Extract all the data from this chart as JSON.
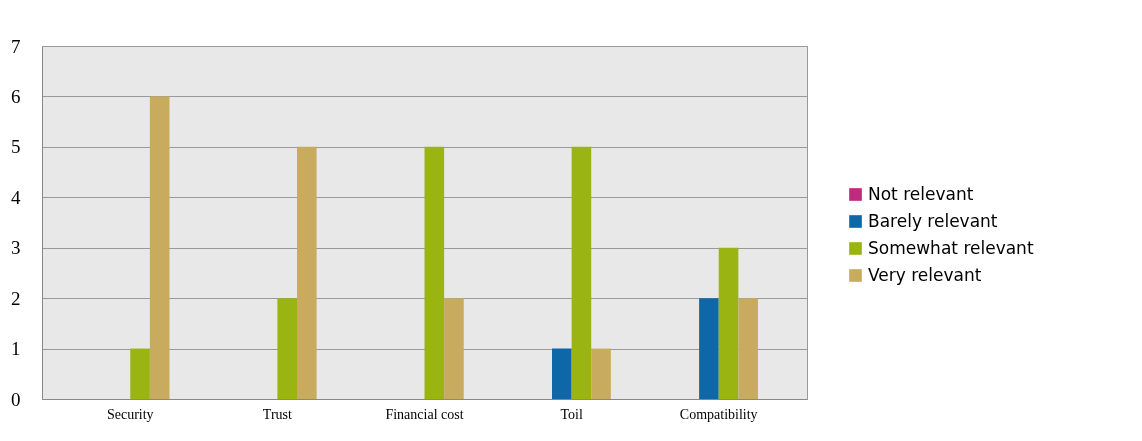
{
  "chart_data": {
    "type": "bar",
    "categories": [
      "Security",
      "Trust",
      "Financial cost",
      "Toil",
      "Compatibility"
    ],
    "series": [
      {
        "name": "Not relevant",
        "color": "#be2a7e",
        "values": [
          0,
          0,
          0,
          0,
          0
        ]
      },
      {
        "name": "Barely relevant",
        "color": "#0e68a8",
        "values": [
          0,
          0,
          0,
          1,
          2
        ]
      },
      {
        "name": "Somewhat relevant",
        "color": "#9ab512",
        "values": [
          1,
          2,
          5,
          5,
          3
        ]
      },
      {
        "name": "Very relevant",
        "color": "#c8ab5f",
        "values": [
          6,
          5,
          2,
          1,
          2
        ]
      }
    ],
    "ylim": [
      0,
      7
    ],
    "yticks": [
      0,
      1,
      2,
      3,
      4,
      5,
      6,
      7
    ],
    "grid": "y",
    "legend": "right"
  }
}
